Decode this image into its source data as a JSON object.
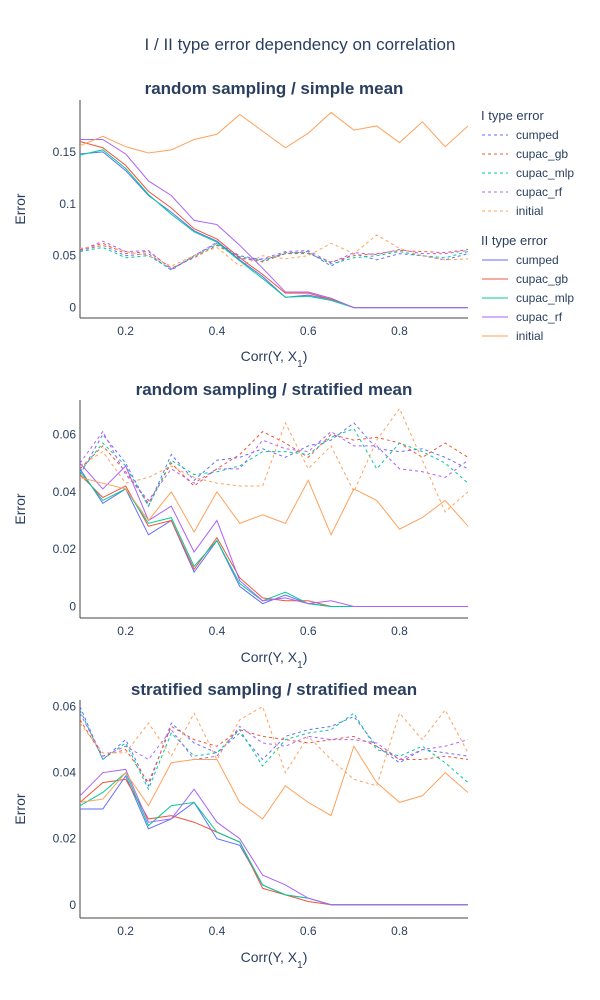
{
  "title": "I / II type error dependency on correlation",
  "colors": {
    "cumped": "#636efa",
    "cupac_gb": "#EF553B",
    "cupac_mlp": "#00cc96",
    "cupac_rf": "#ab63fa",
    "initial": "#FFA15A",
    "text": "#2a3f5f",
    "axis": "#444444"
  },
  "legend": {
    "placement": "right",
    "groups": [
      {
        "title": "I type error",
        "dash": "dashed",
        "items": [
          "cumped",
          "cupac_gb",
          "cupac_mlp",
          "cupac_rf",
          "initial"
        ]
      },
      {
        "title": "II type error",
        "dash": "solid",
        "items": [
          "cumped",
          "cupac_gb",
          "cupac_mlp",
          "cupac_rf",
          "initial"
        ]
      }
    ]
  },
  "chart_data": [
    {
      "type": "line",
      "title": "random sampling / simple mean",
      "xlabel": "Corr(Y, X",
      "xlabel_sub": "1",
      "xlabel_end": ")",
      "ylabel": "Error",
      "xlim": [
        0.1,
        0.95
      ],
      "ylim": [
        -0.01,
        0.2
      ],
      "xticks": [
        {
          "v": 0.2,
          "label": "0.2"
        },
        {
          "v": 0.4,
          "label": "0.4"
        },
        {
          "v": 0.6,
          "label": "0.6"
        },
        {
          "v": 0.8,
          "label": "0.8"
        }
      ],
      "yticks": [
        {
          "v": 0,
          "label": "0"
        },
        {
          "v": 0.05,
          "label": "0.05"
        },
        {
          "v": 0.1,
          "label": "0.1"
        },
        {
          "v": 0.15,
          "label": "0.15"
        }
      ],
      "x": [
        0.1,
        0.15,
        0.2,
        0.25,
        0.3,
        0.35,
        0.4,
        0.45,
        0.5,
        0.55,
        0.6,
        0.65,
        0.7,
        0.75,
        0.8,
        0.85,
        0.9,
        0.95
      ],
      "series": [
        {
          "name": "cumped",
          "group": "I type error",
          "dash": "dashed",
          "values": [
            0.055,
            0.06,
            0.05,
            0.052,
            0.036,
            0.05,
            0.062,
            0.05,
            0.046,
            0.052,
            0.054,
            0.04,
            0.052,
            0.046,
            0.052,
            0.05,
            0.046,
            0.052
          ]
        },
        {
          "name": "cupac_gb",
          "group": "I type error",
          "dash": "dashed",
          "values": [
            0.056,
            0.062,
            0.052,
            0.054,
            0.038,
            0.048,
            0.06,
            0.048,
            0.044,
            0.052,
            0.052,
            0.044,
            0.05,
            0.052,
            0.055,
            0.054,
            0.053,
            0.056
          ]
        },
        {
          "name": "cupac_mlp",
          "group": "I type error",
          "dash": "dashed",
          "values": [
            0.054,
            0.058,
            0.048,
            0.05,
            0.037,
            0.049,
            0.061,
            0.049,
            0.045,
            0.053,
            0.053,
            0.042,
            0.048,
            0.05,
            0.054,
            0.05,
            0.048,
            0.054
          ]
        },
        {
          "name": "cupac_rf",
          "group": "I type error",
          "dash": "dashed",
          "values": [
            0.055,
            0.064,
            0.054,
            0.055,
            0.037,
            0.05,
            0.063,
            0.047,
            0.047,
            0.054,
            0.055,
            0.043,
            0.053,
            0.051,
            0.056,
            0.052,
            0.052,
            0.055
          ]
        },
        {
          "name": "initial",
          "group": "I type error",
          "dash": "dashed",
          "values": [
            0.057,
            0.06,
            0.054,
            0.05,
            0.04,
            0.05,
            0.058,
            0.04,
            0.05,
            0.047,
            0.05,
            0.062,
            0.052,
            0.07,
            0.057,
            0.05,
            0.046,
            0.047
          ]
        },
        {
          "name": "cumped",
          "group": "II type error",
          "dash": "solid",
          "values": [
            0.148,
            0.15,
            0.132,
            0.108,
            0.092,
            0.074,
            0.064,
            0.046,
            0.03,
            0.01,
            0.012,
            0.008,
            0.0,
            0.0,
            0.0,
            0.0,
            0.0,
            0.0
          ]
        },
        {
          "name": "cupac_gb",
          "group": "II type error",
          "dash": "solid",
          "values": [
            0.16,
            0.154,
            0.137,
            0.112,
            0.096,
            0.076,
            0.066,
            0.048,
            0.032,
            0.014,
            0.014,
            0.008,
            0.0,
            0.0,
            0.0,
            0.0,
            0.0,
            0.0
          ]
        },
        {
          "name": "cupac_mlp",
          "group": "II type error",
          "dash": "solid",
          "values": [
            0.147,
            0.152,
            0.134,
            0.109,
            0.09,
            0.073,
            0.063,
            0.045,
            0.028,
            0.01,
            0.011,
            0.007,
            0.0,
            0.0,
            0.0,
            0.0,
            0.0,
            0.0
          ]
        },
        {
          "name": "cupac_rf",
          "group": "II type error",
          "dash": "solid",
          "values": [
            0.162,
            0.162,
            0.148,
            0.122,
            0.108,
            0.084,
            0.08,
            0.06,
            0.038,
            0.015,
            0.015,
            0.009,
            0.0,
            0.0,
            0.0,
            0.0,
            0.0,
            0.0
          ]
        },
        {
          "name": "initial",
          "group": "II type error",
          "dash": "solid",
          "values": [
            0.156,
            0.165,
            0.155,
            0.149,
            0.152,
            0.162,
            0.167,
            0.186,
            0.17,
            0.154,
            0.168,
            0.188,
            0.171,
            0.175,
            0.159,
            0.179,
            0.155,
            0.175
          ]
        }
      ]
    },
    {
      "type": "line",
      "title": "random sampling / stratified mean",
      "xlabel": "Corr(Y, X",
      "xlabel_sub": "1",
      "xlabel_end": ")",
      "ylabel": "Error",
      "xlim": [
        0.1,
        0.95
      ],
      "ylim": [
        -0.004,
        0.072
      ],
      "xticks": [
        {
          "v": 0.2,
          "label": "0.2"
        },
        {
          "v": 0.4,
          "label": "0.4"
        },
        {
          "v": 0.6,
          "label": "0.6"
        },
        {
          "v": 0.8,
          "label": "0.8"
        }
      ],
      "yticks": [
        {
          "v": 0,
          "label": "0"
        },
        {
          "v": 0.02,
          "label": "0.02"
        },
        {
          "v": 0.04,
          "label": "0.04"
        },
        {
          "v": 0.06,
          "label": "0.06"
        }
      ],
      "x": [
        0.1,
        0.15,
        0.2,
        0.25,
        0.3,
        0.35,
        0.4,
        0.45,
        0.5,
        0.55,
        0.6,
        0.65,
        0.7,
        0.75,
        0.8,
        0.85,
        0.9,
        0.95
      ],
      "series": [
        {
          "name": "cumped",
          "group": "I type error",
          "dash": "dashed",
          "values": [
            0.046,
            0.06,
            0.05,
            0.035,
            0.053,
            0.044,
            0.051,
            0.052,
            0.055,
            0.052,
            0.056,
            0.058,
            0.064,
            0.055,
            0.054,
            0.055,
            0.052,
            0.048
          ]
        },
        {
          "name": "cupac_gb",
          "group": "I type error",
          "dash": "dashed",
          "values": [
            0.048,
            0.056,
            0.047,
            0.036,
            0.05,
            0.042,
            0.048,
            0.053,
            0.061,
            0.057,
            0.052,
            0.06,
            0.058,
            0.059,
            0.057,
            0.052,
            0.057,
            0.052
          ]
        },
        {
          "name": "cupac_mlp",
          "group": "I type error",
          "dash": "dashed",
          "values": [
            0.047,
            0.057,
            0.049,
            0.035,
            0.051,
            0.046,
            0.047,
            0.049,
            0.054,
            0.054,
            0.053,
            0.059,
            0.062,
            0.048,
            0.057,
            0.054,
            0.05,
            0.043
          ]
        },
        {
          "name": "cupac_rf",
          "group": "I type error",
          "dash": "dashed",
          "values": [
            0.05,
            0.061,
            0.046,
            0.037,
            0.048,
            0.043,
            0.048,
            0.048,
            0.058,
            0.055,
            0.054,
            0.061,
            0.056,
            0.056,
            0.048,
            0.047,
            0.045,
            0.051
          ]
        },
        {
          "name": "initial",
          "group": "I type error",
          "dash": "dashed",
          "values": [
            0.049,
            0.054,
            0.043,
            0.045,
            0.049,
            0.045,
            0.043,
            0.042,
            0.042,
            0.064,
            0.048,
            0.056,
            0.04,
            0.058,
            0.069,
            0.051,
            0.033,
            0.04
          ]
        },
        {
          "name": "cumped",
          "group": "II type error",
          "dash": "solid",
          "values": [
            0.048,
            0.036,
            0.041,
            0.025,
            0.03,
            0.012,
            0.023,
            0.007,
            0.001,
            0.004,
            0.001,
            0.0,
            0.0,
            0.0,
            0.0,
            0.0,
            0.0,
            0.0
          ]
        },
        {
          "name": "cupac_gb",
          "group": "II type error",
          "dash": "solid",
          "values": [
            0.046,
            0.038,
            0.042,
            0.028,
            0.03,
            0.013,
            0.024,
            0.01,
            0.003,
            0.002,
            0.002,
            0.0,
            0.0,
            0.0,
            0.0,
            0.0,
            0.0,
            0.0
          ]
        },
        {
          "name": "cupac_mlp",
          "group": "II type error",
          "dash": "solid",
          "values": [
            0.047,
            0.037,
            0.041,
            0.029,
            0.031,
            0.014,
            0.023,
            0.008,
            0.002,
            0.005,
            0.001,
            0.0,
            0.0,
            0.0,
            0.0,
            0.0,
            0.0,
            0.0
          ]
        },
        {
          "name": "cupac_rf",
          "group": "II type error",
          "dash": "solid",
          "values": [
            0.05,
            0.041,
            0.049,
            0.03,
            0.035,
            0.019,
            0.03,
            0.009,
            0.002,
            0.003,
            0.001,
            0.002,
            0.0,
            0.0,
            0.0,
            0.0,
            0.0,
            0.0
          ]
        },
        {
          "name": "initial",
          "group": "II type error",
          "dash": "solid",
          "values": [
            0.045,
            0.043,
            0.041,
            0.03,
            0.04,
            0.026,
            0.04,
            0.029,
            0.032,
            0.029,
            0.044,
            0.025,
            0.041,
            0.037,
            0.027,
            0.031,
            0.037,
            0.028
          ]
        }
      ]
    },
    {
      "type": "line",
      "title": "stratified sampling / stratified mean",
      "xlabel": "Corr(Y, X",
      "xlabel_sub": "1",
      "xlabel_end": ")",
      "ylabel": "Error",
      "xlim": [
        0.1,
        0.95
      ],
      "ylim": [
        -0.004,
        0.062
      ],
      "xticks": [
        {
          "v": 0.2,
          "label": "0.2"
        },
        {
          "v": 0.4,
          "label": "0.4"
        },
        {
          "v": 0.6,
          "label": "0.6"
        },
        {
          "v": 0.8,
          "label": "0.8"
        }
      ],
      "yticks": [
        {
          "v": 0,
          "label": "0"
        },
        {
          "v": 0.02,
          "label": "0.02"
        },
        {
          "v": 0.04,
          "label": "0.04"
        },
        {
          "v": 0.06,
          "label": "0.06"
        }
      ],
      "x": [
        0.1,
        0.15,
        0.2,
        0.25,
        0.3,
        0.35,
        0.4,
        0.45,
        0.5,
        0.55,
        0.6,
        0.65,
        0.7,
        0.75,
        0.8,
        0.85,
        0.9,
        0.95
      ],
      "series": [
        {
          "name": "cumped",
          "group": "I type error",
          "dash": "dashed",
          "values": [
            0.06,
            0.044,
            0.05,
            0.036,
            0.055,
            0.049,
            0.046,
            0.052,
            0.044,
            0.051,
            0.053,
            0.054,
            0.057,
            0.048,
            0.043,
            0.047,
            0.046,
            0.045
          ]
        },
        {
          "name": "cupac_gb",
          "group": "I type error",
          "dash": "dashed",
          "values": [
            0.056,
            0.045,
            0.047,
            0.037,
            0.054,
            0.05,
            0.048,
            0.053,
            0.051,
            0.05,
            0.049,
            0.05,
            0.051,
            0.048,
            0.044,
            0.044,
            0.045,
            0.044
          ]
        },
        {
          "name": "cupac_mlp",
          "group": "I type error",
          "dash": "dashed",
          "values": [
            0.059,
            0.044,
            0.049,
            0.035,
            0.052,
            0.045,
            0.046,
            0.053,
            0.042,
            0.05,
            0.052,
            0.053,
            0.058,
            0.047,
            0.045,
            0.048,
            0.043,
            0.037
          ]
        },
        {
          "name": "cupac_rf",
          "group": "I type error",
          "dash": "dashed",
          "values": [
            0.058,
            0.045,
            0.048,
            0.044,
            0.053,
            0.044,
            0.045,
            0.054,
            0.049,
            0.048,
            0.051,
            0.05,
            0.05,
            0.049,
            0.044,
            0.047,
            0.048,
            0.05
          ]
        },
        {
          "name": "initial",
          "group": "I type error",
          "dash": "dashed",
          "values": [
            0.055,
            0.046,
            0.046,
            0.055,
            0.045,
            0.058,
            0.044,
            0.056,
            0.06,
            0.04,
            0.051,
            0.044,
            0.038,
            0.036,
            0.058,
            0.05,
            0.059,
            0.046
          ]
        },
        {
          "name": "cumped",
          "group": "II type error",
          "dash": "solid",
          "values": [
            0.029,
            0.029,
            0.039,
            0.023,
            0.026,
            0.031,
            0.02,
            0.018,
            0.006,
            0.003,
            0.002,
            0.0,
            0.0,
            0.0,
            0.0,
            0.0,
            0.0,
            0.0
          ]
        },
        {
          "name": "cupac_gb",
          "group": "II type error",
          "dash": "solid",
          "values": [
            0.031,
            0.037,
            0.038,
            0.026,
            0.027,
            0.025,
            0.022,
            0.019,
            0.005,
            0.003,
            0.001,
            0.0,
            0.0,
            0.0,
            0.0,
            0.0,
            0.0,
            0.0
          ]
        },
        {
          "name": "cupac_mlp",
          "group": "II type error",
          "dash": "solid",
          "values": [
            0.03,
            0.034,
            0.04,
            0.024,
            0.03,
            0.031,
            0.022,
            0.019,
            0.006,
            0.003,
            0.002,
            0.0,
            0.0,
            0.0,
            0.0,
            0.0,
            0.0,
            0.0
          ]
        },
        {
          "name": "cupac_rf",
          "group": "II type error",
          "dash": "solid",
          "values": [
            0.033,
            0.04,
            0.041,
            0.025,
            0.026,
            0.035,
            0.025,
            0.02,
            0.009,
            0.006,
            0.002,
            0.0,
            0.0,
            0.0,
            0.0,
            0.0,
            0.0,
            0.0
          ]
        },
        {
          "name": "initial",
          "group": "II type error",
          "dash": "solid",
          "values": [
            0.031,
            0.032,
            0.04,
            0.03,
            0.043,
            0.044,
            0.044,
            0.031,
            0.026,
            0.036,
            0.031,
            0.027,
            0.048,
            0.037,
            0.031,
            0.033,
            0.04,
            0.034
          ]
        }
      ]
    }
  ]
}
